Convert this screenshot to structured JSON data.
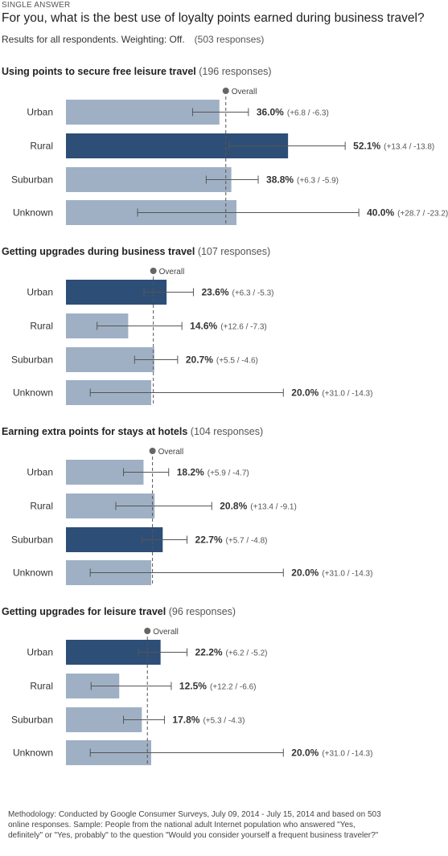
{
  "header": {
    "label": "SINGLE ANSWER",
    "question": "For you, what is the best use of loyalty points earned during business travel?",
    "results_text": "Results for all respondents. Weighting: Off.",
    "responses_text": "(503 responses)"
  },
  "overall_label": "Overall",
  "colors": {
    "bar": "#9fb0c4",
    "bar_highlight": "#2d4e76",
    "error_bar": "#555555",
    "overall_line": "#555555"
  },
  "chart_data": [
    {
      "type": "bar",
      "orientation": "horizontal",
      "title": "Using points to secure free leisure travel",
      "responses": "(196 responses)",
      "overall": 37.5,
      "categories": [
        "Urban",
        "Rural",
        "Suburban",
        "Unknown"
      ],
      "values": [
        36.0,
        52.1,
        38.8,
        40.0
      ],
      "value_labels": [
        "36.0%",
        "52.1%",
        "38.8%",
        "40.0%"
      ],
      "ci_plus": [
        6.8,
        13.4,
        6.3,
        28.7
      ],
      "ci_minus": [
        6.3,
        13.8,
        5.9,
        23.2
      ],
      "ci_labels": [
        "(+6.8 / -6.3)",
        "(+13.4 / -13.8)",
        "(+6.3 / -5.9)",
        "(+28.7 / -23.2)"
      ],
      "highlight": "Rural"
    },
    {
      "type": "bar",
      "orientation": "horizontal",
      "title": "Getting upgrades during business travel",
      "responses": "(107 responses)",
      "overall": 20.5,
      "categories": [
        "Urban",
        "Rural",
        "Suburban",
        "Unknown"
      ],
      "values": [
        23.6,
        14.6,
        20.7,
        20.0
      ],
      "value_labels": [
        "23.6%",
        "14.6%",
        "20.7%",
        "20.0%"
      ],
      "ci_plus": [
        6.3,
        12.6,
        5.5,
        31.0
      ],
      "ci_minus": [
        5.3,
        7.3,
        4.6,
        14.3
      ],
      "ci_labels": [
        "(+6.3 / -5.3)",
        "(+12.6 / -7.3)",
        "(+5.5 / -4.6)",
        "(+31.0 / -14.3)"
      ],
      "highlight": "Urban"
    },
    {
      "type": "bar",
      "orientation": "horizontal",
      "title": "Earning extra points for stays at hotels",
      "responses": "(104 responses)",
      "overall": 20.3,
      "categories": [
        "Urban",
        "Rural",
        "Suburban",
        "Unknown"
      ],
      "values": [
        18.2,
        20.8,
        22.7,
        20.0
      ],
      "value_labels": [
        "18.2%",
        "20.8%",
        "22.7%",
        "20.0%"
      ],
      "ci_plus": [
        5.9,
        13.4,
        5.7,
        31.0
      ],
      "ci_minus": [
        4.7,
        9.1,
        4.8,
        14.3
      ],
      "ci_labels": [
        "(+5.9 / -4.7)",
        "(+13.4 / -9.1)",
        "(+5.7 / -4.8)",
        "(+31.0 / -14.3)"
      ],
      "highlight": "Suburban"
    },
    {
      "type": "bar",
      "orientation": "horizontal",
      "title": "Getting upgrades for leisure travel",
      "responses": "(96 responses)",
      "overall": 19.1,
      "categories": [
        "Urban",
        "Rural",
        "Suburban",
        "Unknown"
      ],
      "values": [
        22.2,
        12.5,
        17.8,
        20.0
      ],
      "value_labels": [
        "22.2%",
        "12.5%",
        "17.8%",
        "20.0%"
      ],
      "ci_plus": [
        6.2,
        12.2,
        5.3,
        31.0
      ],
      "ci_minus": [
        5.2,
        6.6,
        4.3,
        14.3
      ],
      "ci_labels": [
        "(+6.2 / -5.2)",
        "(+12.2 / -6.6)",
        "(+5.3 / -4.3)",
        "(+31.0 / -14.3)"
      ],
      "highlight": "Urban"
    }
  ],
  "methodology": "Methodology: Conducted by Google Consumer Surveys, July 09, 2014 - July 15, 2014 and based on 503 online responses. Sample: People from the national adult Internet population who answered \"Yes, definitely\" or \"Yes, probably\" to the question \"Would you consider yourself a frequent business traveler?\""
}
